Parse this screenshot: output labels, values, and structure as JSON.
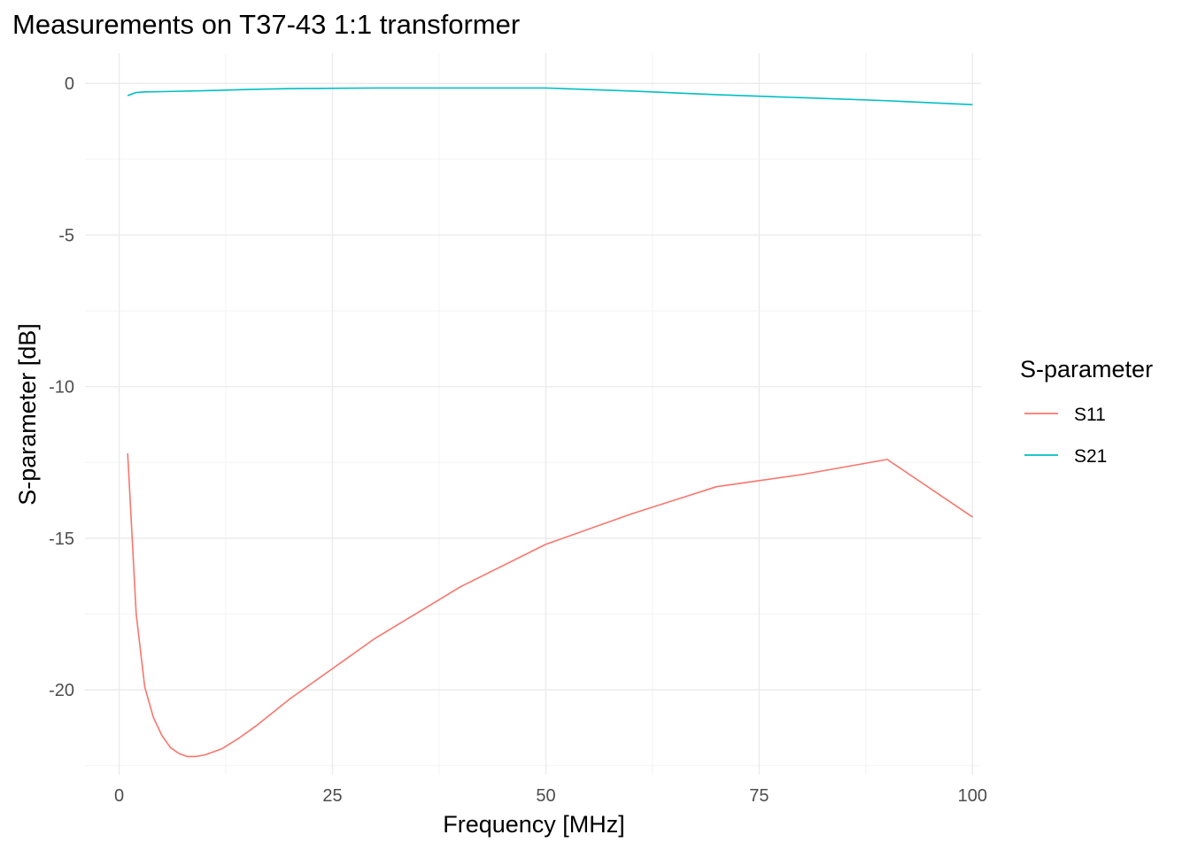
{
  "chart_data": {
    "type": "line",
    "title": "Measurements on T37-43 1:1 transformer",
    "xlabel": "Frequency [MHz]",
    "ylabel": "S-parameter [dB]",
    "xlim": [
      -4,
      101
    ],
    "ylim": [
      -22.8,
      1.0
    ],
    "x_ticks": [
      0,
      25,
      50,
      75,
      100
    ],
    "x_tick_labels": [
      "0",
      "25",
      "50",
      "75",
      "100"
    ],
    "y_ticks": [
      0,
      -5,
      -10,
      -15,
      -20
    ],
    "y_tick_labels": [
      "0",
      "-5",
      "-10",
      "-15",
      "-20"
    ],
    "grid": true,
    "legend": {
      "title": "S-parameter",
      "position": "right"
    },
    "series": [
      {
        "name": "S11",
        "color": "#F8766D",
        "x": [
          1,
          2,
          3,
          4,
          5,
          6,
          7,
          8,
          9,
          10,
          12,
          14,
          16,
          20,
          25,
          30,
          40,
          50,
          60,
          70,
          80,
          90,
          100
        ],
        "y": [
          -12.2,
          -17.5,
          -19.9,
          -20.9,
          -21.5,
          -21.9,
          -22.1,
          -22.2,
          -22.2,
          -22.15,
          -21.95,
          -21.6,
          -21.2,
          -20.3,
          -19.3,
          -18.3,
          -16.6,
          -15.2,
          -14.2,
          -13.3,
          -12.9,
          -12.4,
          -14.3
        ]
      },
      {
        "name": "S21",
        "color": "#00BFC4",
        "x": [
          1,
          2,
          3,
          5,
          10,
          15,
          20,
          30,
          40,
          50,
          60,
          70,
          80,
          90,
          100
        ],
        "y": [
          -0.4,
          -0.3,
          -0.28,
          -0.27,
          -0.24,
          -0.2,
          -0.17,
          -0.15,
          -0.15,
          -0.15,
          -0.25,
          -0.37,
          -0.47,
          -0.57,
          -0.7
        ]
      }
    ]
  }
}
